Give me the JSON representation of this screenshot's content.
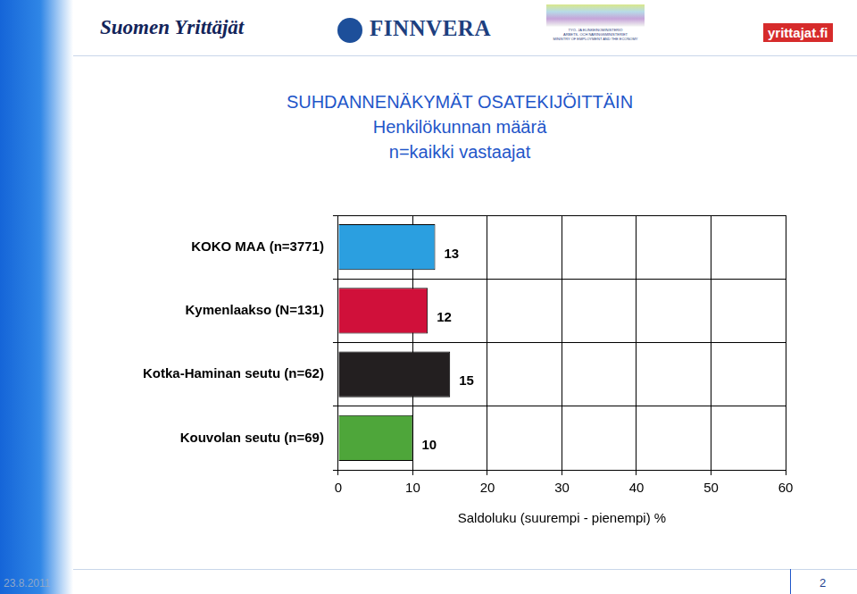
{
  "header": {
    "logo_left": "Suomen Yrittäjät",
    "logo_center": "FINNVERA",
    "ministry": [
      "TYÖ- JA ELINKEINOMINISTERIÖ",
      "ARBETS- OCH NÄRINGSMINISTERIET",
      "MINISTRY OF EMPLOYMENT AND THE ECONOMY"
    ],
    "logo_right": "yrittajat.fi"
  },
  "chart_data": {
    "type": "bar",
    "orientation": "horizontal",
    "title": "SUHDANNENÄKYMÄT OSATEKIJÖITTÄIN",
    "subtitle": [
      "Henkilökunnan määrä",
      "n=kaikki vastaajat"
    ],
    "categories": [
      "KOKO MAA (n=3771)",
      "Kymenlaakso (N=131)",
      "Kotka-Haminan seutu (n=62)",
      "Kouvolan seutu (n=69)"
    ],
    "values": [
      13,
      12,
      15,
      10
    ],
    "colors": [
      "#2b9fe0",
      "#d0103a",
      "#231f20",
      "#4ea63a"
    ],
    "x_label": "Saldoluku (suurempi - pienempi) %",
    "xlim": [
      0,
      60
    ],
    "xticks": [
      0,
      10,
      20,
      30,
      40,
      50,
      60
    ],
    "grid": true,
    "data_labels": true
  },
  "footer": {
    "date": "23.8.2011",
    "page": "2"
  }
}
